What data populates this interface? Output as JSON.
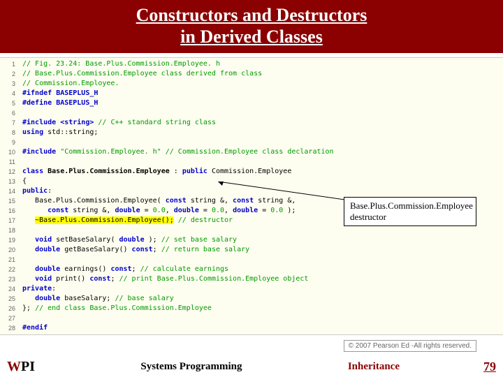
{
  "title_line1": "Constructors and Destructors",
  "title_line2": "in Derived Classes",
  "code_lines": [
    {
      "n": 1,
      "html": "<span class='cm'>// Fig. 23.24: Base.Plus.Commission.Employee. h</span>"
    },
    {
      "n": 2,
      "html": "<span class='cm'>// Base.Plus.Commission.Employee class derived from class</span>"
    },
    {
      "n": 3,
      "html": "<span class='cm'>// Commission.Employee.</span>"
    },
    {
      "n": 4,
      "html": "<span class='pp'>#ifndef</span> <span class='pp'>BASEPLUS_H</span>"
    },
    {
      "n": 5,
      "html": "<span class='pp'>#define</span> <span class='pp'>BASEPLUS_H</span>"
    },
    {
      "n": 6,
      "html": ""
    },
    {
      "n": 7,
      "html": "<span class='pp'>#include</span> <span class='kw'>&lt;string&gt;</span> <span class='cm'>// C++ standard string class</span>"
    },
    {
      "n": 8,
      "html": "<span class='kw'>using</span> std::string;"
    },
    {
      "n": 9,
      "html": ""
    },
    {
      "n": 10,
      "html": "<span class='pp'>#include</span> <span class='str'>\"Commission.Employee. h\"</span> <span class='cm'>// Commission.Employee class declaration</span>"
    },
    {
      "n": 11,
      "html": ""
    },
    {
      "n": 12,
      "html": "<span class='kw'>class</span> <span class='bold'>Base.Plus.Commission.Employee</span> : <span class='kw'>public</span> Commission.Employee"
    },
    {
      "n": 13,
      "html": "{"
    },
    {
      "n": 14,
      "html": "<span class='kw'>public</span>:"
    },
    {
      "n": 15,
      "html": "   Base.Plus.Commission.Employee( <span class='kw'>const</span> string &amp;, <span class='kw'>const</span> string &amp;,"
    },
    {
      "n": 16,
      "html": "      <span class='kw'>const</span> string &amp;, <span class='kw'>double</span> = <span class='str'>0.0</span>, <span class='kw'>double</span> = <span class='str'>0.0</span>, <span class='kw'>double</span> = <span class='str'>0.0</span> );"
    },
    {
      "n": 17,
      "html": "   <span class='hl-yellow'>~Base.Plus.Commission.Employee();</span> <span class='cm'>// destructor</span>"
    },
    {
      "n": 18,
      "html": ""
    },
    {
      "n": 19,
      "html": "   <span class='kw'>void</span> setBaseSalary( <span class='kw'>double</span> ); <span class='cm'>// set base salary</span>"
    },
    {
      "n": 20,
      "html": "   <span class='kw'>double</span> getBaseSalary() <span class='kw'>const</span>; <span class='cm'>// return base salary</span>"
    },
    {
      "n": 21,
      "html": ""
    },
    {
      "n": 22,
      "html": "   <span class='kw'>double</span> earnings() <span class='kw'>const</span>; <span class='cm'>// calculate earnings</span>"
    },
    {
      "n": 23,
      "html": "   <span class='kw'>void</span> print() <span class='kw'>const</span>; <span class='cm'>// print Base.Plus.Commission.Employee object</span>"
    },
    {
      "n": 24,
      "html": "<span class='kw'>private</span>:"
    },
    {
      "n": 25,
      "html": "   <span class='kw'>double</span> baseSalary; <span class='cm'>// base salary</span>"
    },
    {
      "n": 26,
      "html": "}; <span class='cm'>// end class Base.Plus.Commission.Employee</span>"
    },
    {
      "n": 27,
      "html": ""
    },
    {
      "n": 28,
      "html": "<span class='pp'>#endif</span>"
    }
  ],
  "callout_line1": "Base.Plus.Commission.Employee",
  "callout_line2": "destructor",
  "copyright": "© 2007 Pearson Ed -All rights reserved.",
  "footer_mid": "Systems Programming",
  "footer_inherit": "Inheritance",
  "footer_page": "79",
  "logo": {
    "w": "W",
    "p": "P",
    "i": "I"
  }
}
